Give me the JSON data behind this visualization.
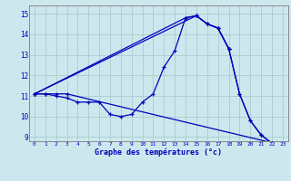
{
  "title": "Graphe des températures (°c)",
  "background_color": "#cce8ee",
  "grid_color": "#aacccc",
  "line_color": "#0000bb",
  "xlim": [
    -0.5,
    23.5
  ],
  "ylim": [
    8.8,
    15.4
  ],
  "yticks": [
    9,
    10,
    11,
    12,
    13,
    14,
    15
  ],
  "xticks": [
    0,
    1,
    2,
    3,
    4,
    5,
    6,
    7,
    8,
    9,
    10,
    11,
    12,
    13,
    14,
    15,
    16,
    17,
    18,
    19,
    20,
    21,
    22,
    23
  ],
  "series": [
    {
      "x": [
        0,
        1,
        2,
        3,
        4,
        5,
        6,
        7,
        8,
        9,
        10,
        11,
        12,
        13,
        14,
        15,
        16,
        17,
        18,
        19,
        20,
        21,
        22,
        23
      ],
      "y": [
        11.1,
        11.1,
        11.0,
        10.9,
        10.7,
        10.7,
        10.7,
        10.1,
        10.0,
        10.1,
        10.7,
        11.1,
        12.4,
        13.2,
        14.8,
        14.9,
        14.5,
        14.3,
        13.3,
        11.1,
        9.8,
        9.1,
        8.7,
        8.6
      ]
    },
    {
      "x": [
        0,
        1,
        2,
        3,
        23
      ],
      "y": [
        11.1,
        11.1,
        11.1,
        11.1,
        8.6
      ]
    },
    {
      "x": [
        0,
        15,
        16,
        17,
        18,
        19,
        20,
        21,
        22,
        23
      ],
      "y": [
        11.1,
        14.9,
        14.5,
        14.3,
        13.3,
        11.1,
        9.8,
        9.1,
        8.7,
        8.6
      ]
    },
    {
      "x": [
        0,
        14,
        15,
        16,
        17,
        18
      ],
      "y": [
        11.1,
        14.8,
        14.9,
        14.5,
        14.3,
        13.3
      ]
    }
  ]
}
